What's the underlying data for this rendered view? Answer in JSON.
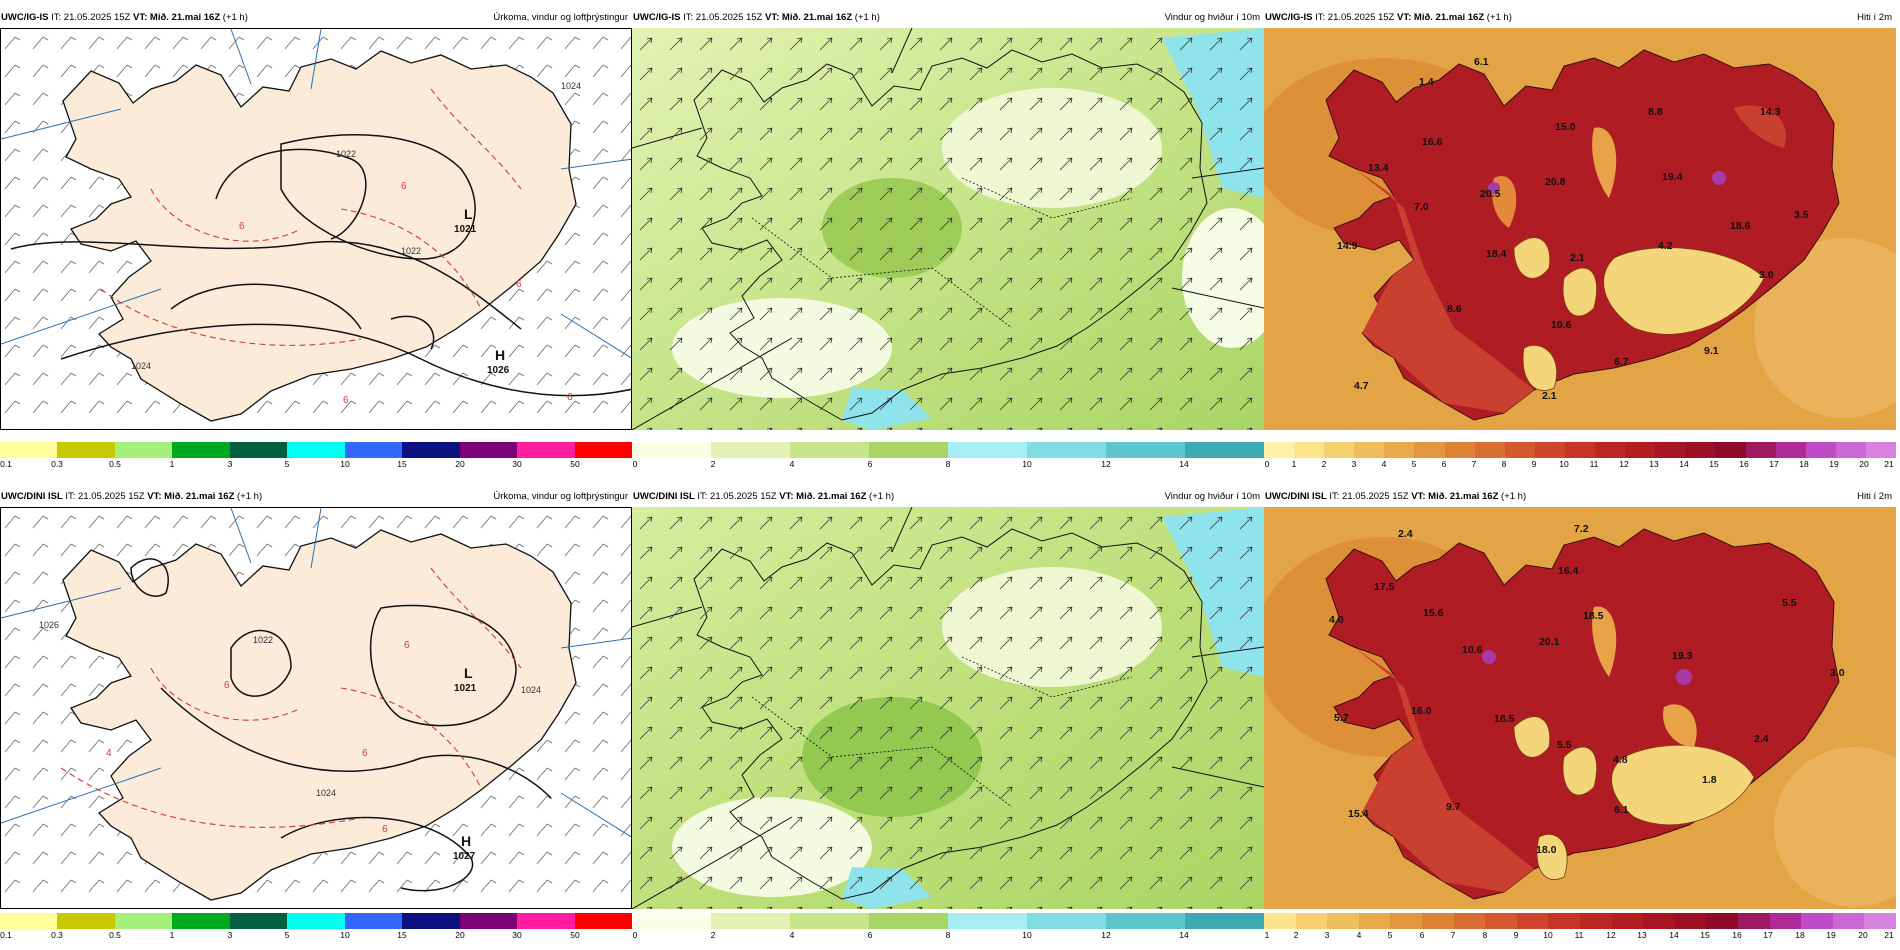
{
  "rows": [
    {
      "model": "UWC/IG-IS",
      "panels": [
        {
          "kind": "precip",
          "it_label": "IT: 21.05.2025 15Z",
          "vt_label": "VT: Mið. 21.mai 16Z",
          "offset": "(+1 h)",
          "title": "Úrkoma, vindur og loftþrýstingur",
          "lows": [
            {
              "letter": "L",
              "value": "1021"
            }
          ],
          "highs": [
            {
              "letter": "H",
              "value": "1026"
            }
          ],
          "isobar_labels": [
            "1022",
            "1022",
            "1024",
            "1024"
          ],
          "temp_labels": [
            "6",
            "6",
            "6",
            "6",
            "6"
          ],
          "colorbar_ticks": [
            "0.1",
            "0.3",
            "0.5",
            "1",
            "3",
            "5",
            "10",
            "15",
            "20",
            "30",
            "50"
          ]
        },
        {
          "kind": "wind",
          "it_label": "IT: 21.05.2025 15Z",
          "vt_label": "VT: Mið. 21.mai 16Z",
          "offset": "(+1 h)",
          "title": "Vindur og hviður í 10m",
          "colorbar_ticks": [
            "0",
            "2",
            "4",
            "6",
            "8",
            "10",
            "12",
            "14"
          ]
        },
        {
          "kind": "temp",
          "it_label": "IT: 21.05.2025 15Z",
          "vt_label": "VT: Mið. 21.mai 16Z",
          "offset": "(+1 h)",
          "title": "Hiti í 2m",
          "values": [
            "1.4",
            "6.1",
            "16.6",
            "15.0",
            "8.8",
            "14.3",
            "13.4",
            "7.0",
            "20.5",
            "20.8",
            "19.4",
            "18.6",
            "3.5",
            "14.9",
            "18.4",
            "2.1",
            "4.2",
            "3.0",
            "8.6",
            "10.6",
            "6.7",
            "9.1",
            "4.7",
            "2.1"
          ],
          "colorbar_ticks": [
            "0",
            "1",
            "2",
            "3",
            "4",
            "5",
            "6",
            "7",
            "8",
            "9",
            "10",
            "11",
            "12",
            "13",
            "14",
            "15",
            "16",
            "17",
            "18",
            "19",
            "20",
            "21"
          ]
        }
      ]
    },
    {
      "model": "UWC/DINI ISL",
      "panels": [
        {
          "kind": "precip",
          "it_label": "IT: 21.05.2025 15Z",
          "vt_label": "VT: Mið. 21.mai 16Z",
          "offset": "(+1 h)",
          "title": "Úrkoma, vindur og loftþrýstingur",
          "lows": [
            {
              "letter": "L",
              "value": "1021"
            }
          ],
          "highs": [
            {
              "letter": "H",
              "value": "1027"
            }
          ],
          "isobar_labels": [
            "1022",
            "1024",
            "1024",
            "1026"
          ],
          "temp_labels": [
            "6",
            "6",
            "6",
            "6",
            "4"
          ],
          "colorbar_ticks": [
            "0.1",
            "0.3",
            "0.5",
            "1",
            "3",
            "5",
            "10",
            "15",
            "20",
            "30",
            "50"
          ]
        },
        {
          "kind": "wind",
          "it_label": "IT: 21.05.2025 15Z",
          "vt_label": "VT: Mið. 21.mai 16Z",
          "offset": "(+1 h)",
          "title": "Vindur og hviður í 10m",
          "colorbar_ticks": [
            "0",
            "2",
            "4",
            "6",
            "8",
            "10",
            "12",
            "14"
          ]
        },
        {
          "kind": "temp",
          "it_label": "IT: 21.05.2025 15Z",
          "vt_label": "VT: Mið. 21.mai 16Z",
          "offset": "(+1 h)",
          "title": "Hiti í 2m",
          "values": [
            "2.4",
            "7.2",
            "17.5",
            "16.4",
            "15.6",
            "18.5",
            "5.5",
            "4.0",
            "20.1",
            "10.6",
            "19.3",
            "3.0",
            "5.7",
            "16.0",
            "18.5",
            "5.5",
            "4.8",
            "2.4",
            "1.8",
            "15.4",
            "9.7",
            "6.1",
            "18.0"
          ],
          "colorbar_ticks": [
            "1",
            "2",
            "3",
            "4",
            "5",
            "6",
            "7",
            "8",
            "9",
            "10",
            "11",
            "12",
            "13",
            "14",
            "15",
            "16",
            "17",
            "18",
            "19",
            "20",
            "21"
          ]
        }
      ]
    }
  ],
  "colors": {
    "precip_bar": [
      "#ffff99",
      "#c8c800",
      "#a5f07a",
      "#00aa20",
      "#006040",
      "#00ffee",
      "#3368ff",
      "#0d1180",
      "#7c0078",
      "#ff1ea0",
      "#ff0000"
    ],
    "wind_bar": [
      "#fbfde6",
      "#e3f2b4",
      "#c6e488",
      "#a9d565",
      "#8fc84c",
      "#a7eef2",
      "#7fdde3",
      "#5dc6cd",
      "#3da9b0"
    ],
    "temp_bar": [
      "#fdf3a6",
      "#fbe48a",
      "#f6d070",
      "#efbd5b",
      "#e8a94a",
      "#e3953f",
      "#de8236",
      "#d96e32",
      "#d4592e",
      "#cd452a",
      "#c53426",
      "#bd2723",
      "#b31d22",
      "#a81522",
      "#9c0f24",
      "#8f0a28",
      "#9e1a60",
      "#ae2a98",
      "#bf4bc6",
      "#cc68d6",
      "#d882e0"
    ],
    "land_precip": "#fcebd9",
    "sea_temp": "#e3a445",
    "land_temp_hot": "#b01c24"
  }
}
